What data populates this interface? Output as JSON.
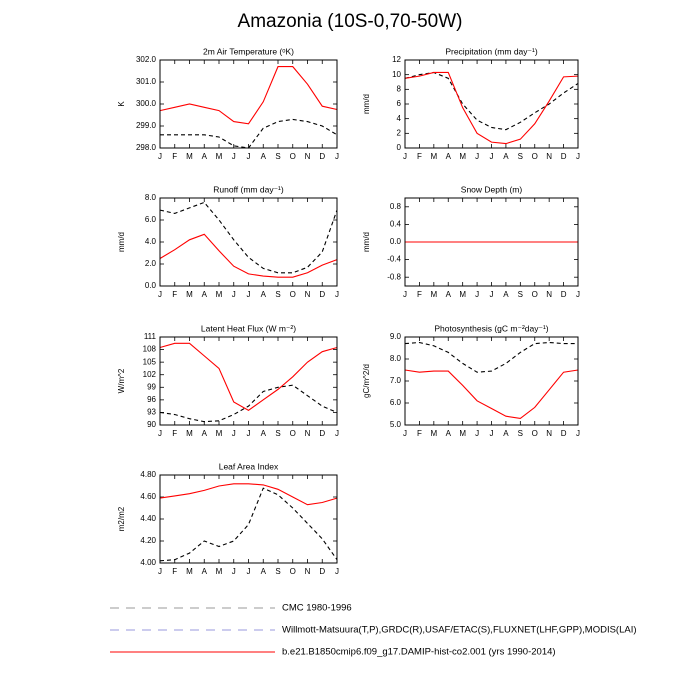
{
  "title": "Amazonia (10S-0,70-50W)",
  "legend": [
    {
      "name": "CMC 1980-1996",
      "color": "#999999",
      "dash": true
    },
    {
      "name": "Willmott-Matsuura(T,P),GRDC(R),USAF/ETAC(S),FLUXNET(LHF,GPP),MODIS(LAI)",
      "color": "#9999dd",
      "dash": true
    },
    {
      "name": "b.e21.B1850cmip6.f09_g17.DAMIP-hist-co2.001 (yrs 1990-2014)",
      "color": "#ff0000",
      "dash": false
    }
  ],
  "chart_data": [
    {
      "type": "line",
      "title": "2m Air Temperature (ᵒK)",
      "y_label": "K",
      "categories": [
        "J",
        "F",
        "M",
        "A",
        "M",
        "J",
        "J",
        "A",
        "S",
        "O",
        "N",
        "D",
        "J"
      ],
      "ylim": [
        298,
        302
      ],
      "yticks": [
        {
          "value": 298,
          "label": "298.0"
        },
        {
          "value": 299,
          "label": "299.0"
        },
        {
          "value": 300,
          "label": "300.0"
        },
        {
          "value": 301,
          "label": "301.0"
        },
        {
          "value": 302,
          "label": "302.0"
        }
      ],
      "series": [
        {
          "color": "#000000",
          "dash": true,
          "values": [
            298.6,
            298.6,
            298.6,
            298.6,
            298.5,
            298.1,
            298.0,
            298.9,
            299.2,
            299.3,
            299.2,
            299.0,
            298.6
          ]
        },
        {
          "color": "#ff0000",
          "dash": false,
          "values": [
            299.7,
            299.85,
            300.0,
            299.85,
            299.7,
            299.2,
            299.1,
            300.1,
            301.7,
            301.7,
            300.9,
            299.9,
            299.75
          ]
        }
      ]
    },
    {
      "type": "line",
      "title": "Precipitation (mm day⁻¹)",
      "y_label": "mm/d",
      "categories": [
        "J",
        "F",
        "M",
        "A",
        "M",
        "J",
        "J",
        "A",
        "S",
        "O",
        "N",
        "D",
        "J"
      ],
      "ylim": [
        0,
        12
      ],
      "yticks": [
        0,
        2,
        4,
        6,
        8,
        10,
        12
      ],
      "series": [
        {
          "color": "#000000",
          "dash": true,
          "values": [
            9.5,
            10.0,
            10.3,
            9.5,
            6.0,
            3.8,
            2.8,
            2.5,
            3.5,
            4.8,
            6.0,
            7.5,
            8.8
          ]
        },
        {
          "color": "#ff0000",
          "dash": false,
          "values": [
            9.5,
            9.8,
            10.3,
            10.3,
            5.5,
            2.0,
            0.8,
            0.6,
            1.2,
            3.3,
            6.4,
            9.7,
            9.8
          ]
        }
      ]
    },
    {
      "type": "line",
      "title": "Runoff (mm day⁻¹)",
      "y_label": "mm/d",
      "categories": [
        "J",
        "F",
        "M",
        "A",
        "M",
        "J",
        "J",
        "A",
        "S",
        "O",
        "N",
        "D",
        "J"
      ],
      "ylim": [
        0,
        8
      ],
      "yticks": [
        {
          "value": 0,
          "label": "0.0"
        },
        {
          "value": 2,
          "label": "2.0"
        },
        {
          "value": 4,
          "label": "4.0"
        },
        {
          "value": 6,
          "label": "6.0"
        },
        {
          "value": 8,
          "label": "8.0"
        }
      ],
      "series": [
        {
          "color": "#000000",
          "dash": true,
          "values": [
            6.9,
            6.6,
            7.1,
            7.6,
            6.0,
            4.2,
            2.6,
            1.6,
            1.2,
            1.2,
            1.7,
            3.1,
            6.9
          ]
        },
        {
          "color": "#ff0000",
          "dash": false,
          "values": [
            2.5,
            3.3,
            4.2,
            4.7,
            3.2,
            1.8,
            1.1,
            0.9,
            0.8,
            0.8,
            1.2,
            1.9,
            2.4
          ]
        }
      ]
    },
    {
      "type": "line",
      "title": "Snow Depth (m)",
      "y_label": "mm/d",
      "categories": [
        "J",
        "F",
        "M",
        "A",
        "M",
        "J",
        "J",
        "A",
        "S",
        "O",
        "N",
        "D",
        "J"
      ],
      "ylim": [
        -1,
        1
      ],
      "yticks": [
        -0.8,
        -0.4,
        {
          "value": 0,
          "label": "0.0"
        },
        0.4,
        0.8
      ],
      "series": [
        {
          "color": "#000000",
          "dash": true,
          "values": [
            0,
            0,
            0,
            0,
            0,
            0,
            0,
            0,
            0,
            0,
            0,
            0,
            0
          ]
        },
        {
          "color": "#ff0000",
          "dash": false,
          "values": [
            0,
            0,
            0,
            0,
            0,
            0,
            0,
            0,
            0,
            0,
            0,
            0,
            0
          ]
        }
      ]
    },
    {
      "type": "line",
      "title": "Latent Heat Flux (W m⁻²)",
      "y_label": "W/m^2",
      "categories": [
        "J",
        "F",
        "M",
        "A",
        "M",
        "J",
        "J",
        "A",
        "S",
        "O",
        "N",
        "D",
        "J"
      ],
      "ylim": [
        90,
        111
      ],
      "yticks": [
        90,
        93,
        96,
        99,
        102,
        105,
        108,
        111
      ],
      "series": [
        {
          "color": "#000000",
          "dash": true,
          "values": [
            93,
            92.5,
            91.5,
            90.8,
            91,
            92.5,
            94.5,
            98,
            99,
            99.5,
            97,
            94.5,
            93
          ]
        },
        {
          "color": "#ff0000",
          "dash": false,
          "values": [
            108.5,
            109.5,
            109.5,
            106.5,
            103.5,
            95.5,
            93.5,
            96,
            98.5,
            101.5,
            105,
            107.5,
            108.5
          ]
        }
      ]
    },
    {
      "type": "line",
      "title": "Photosynthesis (gC m⁻²day⁻¹)",
      "y_label": "gC/m^2/d",
      "categories": [
        "J",
        "F",
        "M",
        "A",
        "M",
        "J",
        "J",
        "A",
        "S",
        "O",
        "N",
        "D",
        "J"
      ],
      "ylim": [
        5,
        9
      ],
      "yticks": [
        {
          "value": 5,
          "label": "5.0"
        },
        {
          "value": 6,
          "label": "6.0"
        },
        {
          "value": 7,
          "label": "7.0"
        },
        {
          "value": 8,
          "label": "8.0"
        },
        {
          "value": 9,
          "label": "9.0"
        }
      ],
      "series": [
        {
          "color": "#000000",
          "dash": true,
          "values": [
            8.7,
            8.75,
            8.6,
            8.3,
            7.8,
            7.4,
            7.45,
            7.8,
            8.3,
            8.7,
            8.75,
            8.7,
            8.7
          ]
        },
        {
          "color": "#ff0000",
          "dash": false,
          "values": [
            7.5,
            7.4,
            7.45,
            7.45,
            6.8,
            6.1,
            5.75,
            5.4,
            5.3,
            5.8,
            6.6,
            7.4,
            7.5
          ]
        }
      ]
    },
    {
      "type": "line",
      "title": "Leaf Area Index",
      "y_label": "m2/m2",
      "categories": [
        "J",
        "F",
        "M",
        "A",
        "M",
        "J",
        "J",
        "A",
        "S",
        "O",
        "N",
        "D",
        "J"
      ],
      "ylim": [
        4,
        4.8
      ],
      "yticks": [
        {
          "value": 4,
          "label": "4.00"
        },
        {
          "value": 4.2,
          "label": "4.20"
        },
        {
          "value": 4.4,
          "label": "4.40"
        },
        {
          "value": 4.6,
          "label": "4.60"
        },
        {
          "value": 4.8,
          "label": "4.80"
        }
      ],
      "series": [
        {
          "color": "#000000",
          "dash": true,
          "values": [
            4.02,
            4.03,
            4.09,
            4.2,
            4.15,
            4.2,
            4.35,
            4.68,
            4.62,
            4.5,
            4.36,
            4.22,
            4.03
          ]
        },
        {
          "color": "#ff0000",
          "dash": false,
          "values": [
            4.59,
            4.61,
            4.63,
            4.66,
            4.7,
            4.72,
            4.72,
            4.71,
            4.67,
            4.6,
            4.53,
            4.55,
            4.59
          ]
        }
      ]
    }
  ]
}
